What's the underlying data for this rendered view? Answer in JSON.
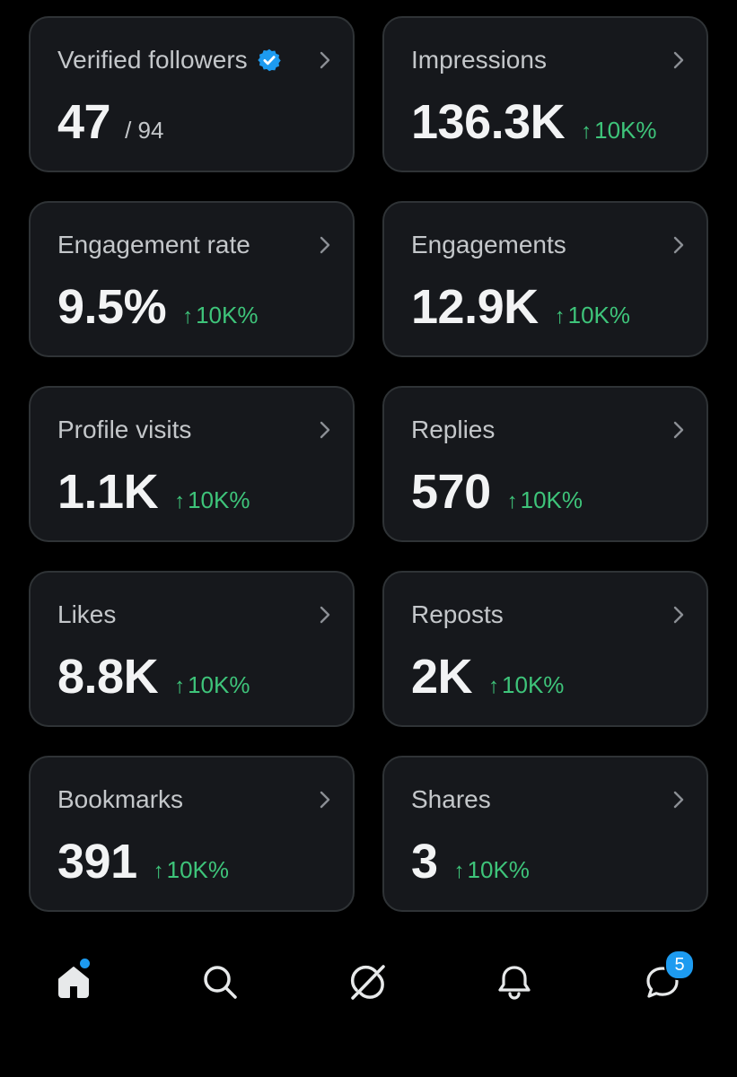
{
  "colors": {
    "background": "#000000",
    "card_background": "#16181c",
    "card_border": "#2f3336",
    "positive_change": "#3ec47a",
    "verified_badge": "#1d9bf0",
    "notification_accent": "#1d9bf0"
  },
  "metrics": [
    {
      "title": "Verified followers",
      "value": "47",
      "total": "/ 94",
      "change": "",
      "icon": "verified-badge-icon"
    },
    {
      "title": "Impressions",
      "value": "136.3K",
      "change": "10K%"
    },
    {
      "title": "Engagement rate",
      "value": "9.5%",
      "change": "10K%"
    },
    {
      "title": "Engagements",
      "value": "12.9K",
      "change": "10K%"
    },
    {
      "title": "Profile visits",
      "value": "1.1K",
      "change": "10K%"
    },
    {
      "title": "Replies",
      "value": "570",
      "change": "10K%"
    },
    {
      "title": "Likes",
      "value": "8.8K",
      "change": "10K%"
    },
    {
      "title": "Reposts",
      "value": "2K",
      "change": "10K%"
    },
    {
      "title": "Bookmarks",
      "value": "391",
      "change": "10K%"
    },
    {
      "title": "Shares",
      "value": "3",
      "change": "10K%"
    }
  ],
  "nav": {
    "items": [
      {
        "name": "home",
        "icon": "home-icon",
        "active": true,
        "has_dot": true
      },
      {
        "name": "search",
        "icon": "search-icon"
      },
      {
        "name": "grok",
        "icon": "grok-icon"
      },
      {
        "name": "notifications",
        "icon": "bell-icon"
      },
      {
        "name": "messages",
        "icon": "message-icon",
        "badge": "5"
      }
    ]
  }
}
